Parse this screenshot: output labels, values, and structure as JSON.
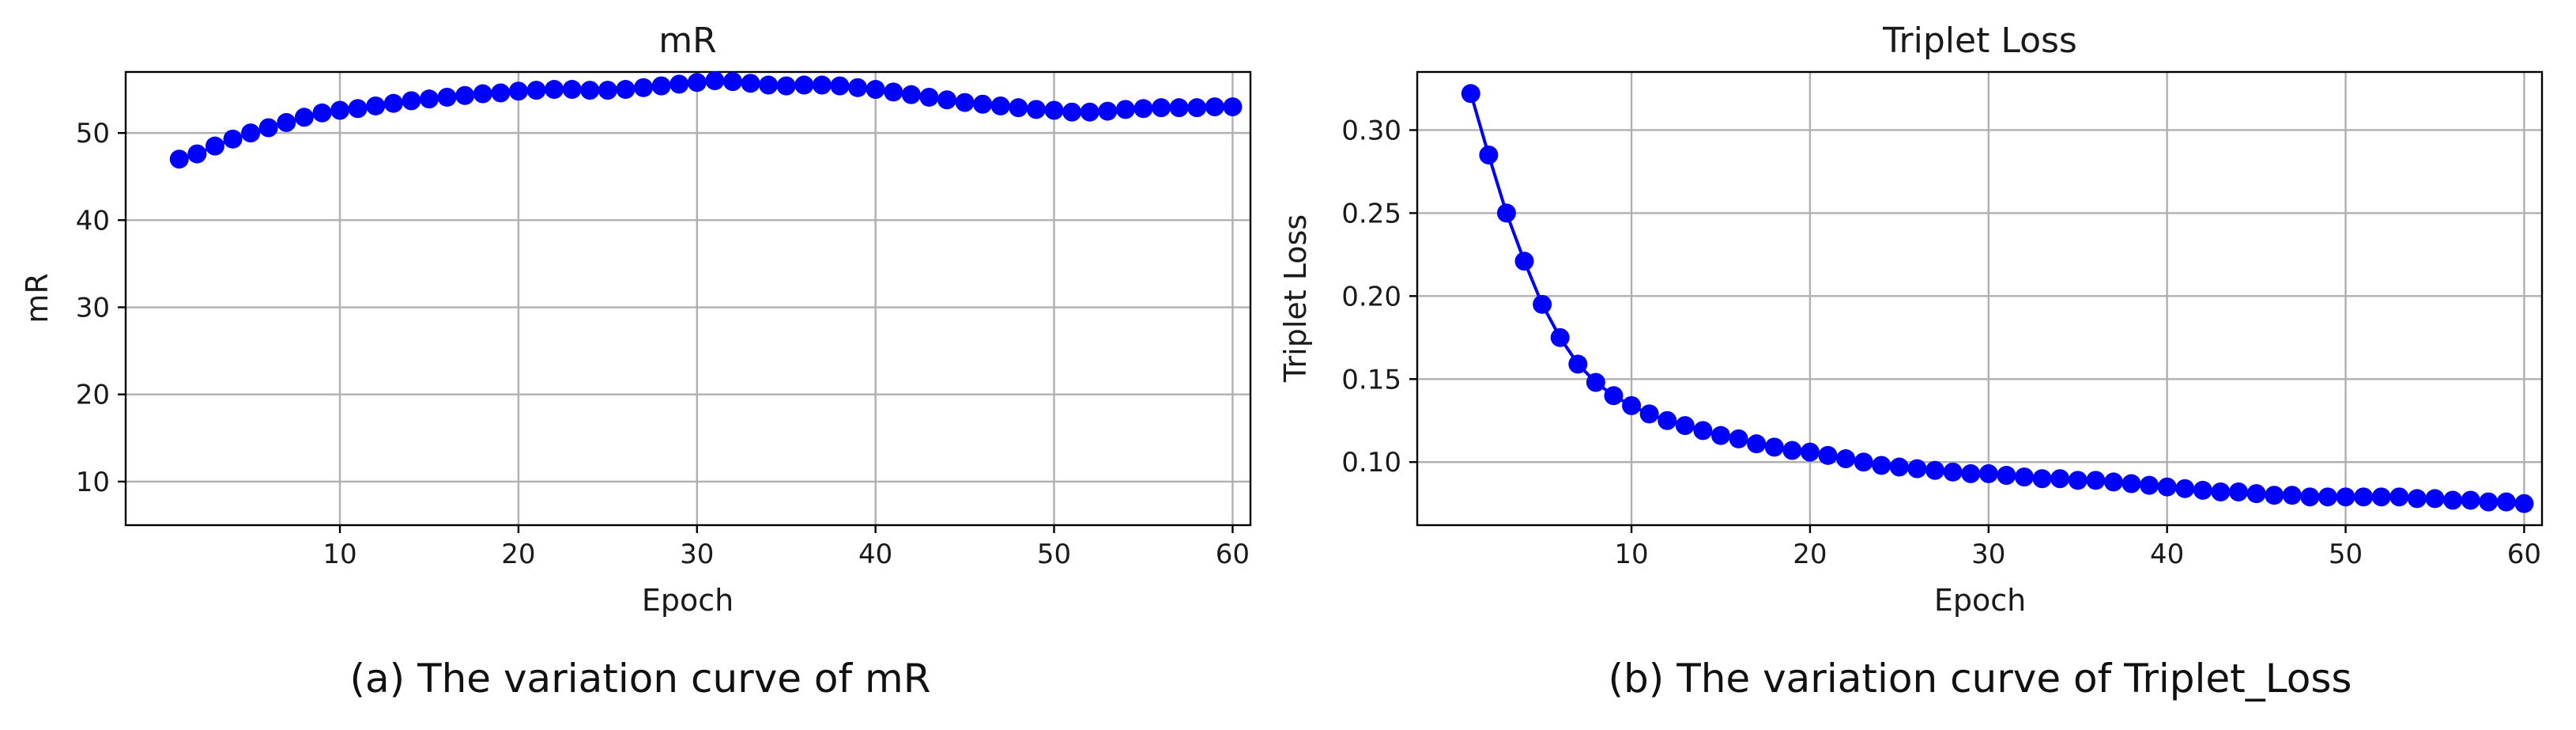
{
  "chart_data": [
    {
      "type": "line",
      "title": "mR",
      "xlabel": "Epoch",
      "ylabel": "mR",
      "caption": "(a) The variation curve of mR",
      "color": "#0000ff",
      "grid": true,
      "xlim": [
        -2,
        61
      ],
      "ylim": [
        5,
        57
      ],
      "xticks": [
        10,
        20,
        30,
        40,
        50,
        60
      ],
      "yticks": [
        10,
        20,
        30,
        40,
        50
      ],
      "x": [
        1,
        2,
        3,
        4,
        5,
        6,
        7,
        8,
        9,
        10,
        11,
        12,
        13,
        14,
        15,
        16,
        17,
        18,
        19,
        20,
        21,
        22,
        23,
        24,
        25,
        26,
        27,
        28,
        29,
        30,
        31,
        32,
        33,
        34,
        35,
        36,
        37,
        38,
        39,
        40,
        41,
        42,
        43,
        44,
        45,
        46,
        47,
        48,
        49,
        50,
        51,
        52,
        53,
        54,
        55,
        56,
        57,
        58,
        59,
        60
      ],
      "y": [
        47.0,
        47.6,
        48.5,
        49.3,
        50.0,
        50.6,
        51.2,
        51.8,
        52.3,
        52.6,
        52.8,
        53.1,
        53.4,
        53.7,
        53.9,
        54.1,
        54.3,
        54.5,
        54.6,
        54.8,
        54.9,
        55.0,
        55.0,
        54.9,
        54.9,
        55.0,
        55.2,
        55.4,
        55.6,
        55.8,
        56.0,
        55.9,
        55.7,
        55.5,
        55.4,
        55.5,
        55.5,
        55.4,
        55.2,
        55.0,
        54.7,
        54.4,
        54.1,
        53.8,
        53.5,
        53.3,
        53.1,
        52.9,
        52.7,
        52.6,
        52.4,
        52.4,
        52.5,
        52.7,
        52.8,
        52.9,
        52.9,
        52.9,
        53.0,
        53.0
      ]
    },
    {
      "type": "line",
      "title": "Triplet Loss",
      "xlabel": "Epoch",
      "ylabel": "Triplet Loss",
      "caption": "(b) The variation curve of Triplet_Loss",
      "color": "#0000ff",
      "grid": true,
      "xlim": [
        -2,
        61
      ],
      "ylim": [
        0.062,
        0.335
      ],
      "xticks": [
        10,
        20,
        30,
        40,
        50,
        60
      ],
      "yticks": [
        0.1,
        0.15,
        0.2,
        0.25,
        0.3
      ],
      "x": [
        1,
        2,
        3,
        4,
        5,
        6,
        7,
        8,
        9,
        10,
        11,
        12,
        13,
        14,
        15,
        16,
        17,
        18,
        19,
        20,
        21,
        22,
        23,
        24,
        25,
        26,
        27,
        28,
        29,
        30,
        31,
        32,
        33,
        34,
        35,
        36,
        37,
        38,
        39,
        40,
        41,
        42,
        43,
        44,
        45,
        46,
        47,
        48,
        49,
        50,
        51,
        52,
        53,
        54,
        55,
        56,
        57,
        58,
        59,
        60
      ],
      "y": [
        0.322,
        0.285,
        0.25,
        0.221,
        0.195,
        0.175,
        0.159,
        0.148,
        0.14,
        0.134,
        0.129,
        0.125,
        0.122,
        0.119,
        0.116,
        0.114,
        0.111,
        0.109,
        0.107,
        0.106,
        0.104,
        0.102,
        0.1,
        0.098,
        0.097,
        0.096,
        0.095,
        0.094,
        0.093,
        0.093,
        0.092,
        0.091,
        0.09,
        0.09,
        0.089,
        0.089,
        0.088,
        0.087,
        0.086,
        0.085,
        0.084,
        0.083,
        0.082,
        0.082,
        0.081,
        0.08,
        0.08,
        0.079,
        0.079,
        0.079,
        0.079,
        0.079,
        0.079,
        0.078,
        0.078,
        0.077,
        0.077,
        0.076,
        0.076,
        0.075
      ]
    }
  ]
}
